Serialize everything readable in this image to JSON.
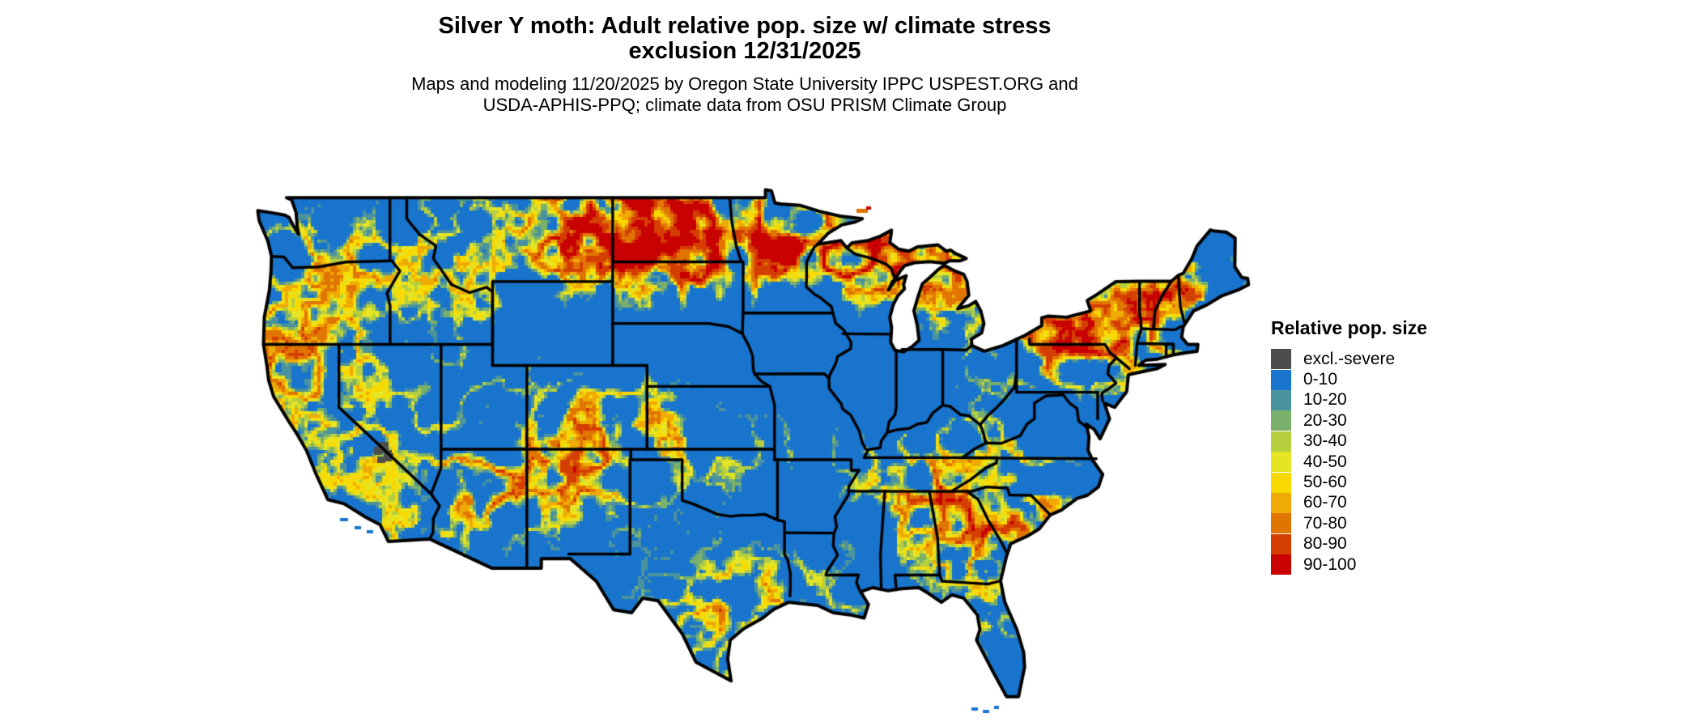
{
  "title": {
    "line1": "Silver Y moth: Adult relative pop. size w/ climate stress",
    "line2": "exclusion 12/31/2025"
  },
  "subtitle": {
    "line1": "Maps and modeling 11/20/2025 by Oregon State University IPPC USPEST.ORG and",
    "line2": "USDA-APHIS-PPQ; climate data from OSU PRISM Climate Group"
  },
  "legend": {
    "title": "Relative pop. size",
    "items": [
      {
        "label": "excl.-severe",
        "color": "#4d4d4d"
      },
      {
        "label": "0-10",
        "color": "#1874CD"
      },
      {
        "label": "10-20",
        "color": "#4B929F"
      },
      {
        "label": "20-30",
        "color": "#7AB06C"
      },
      {
        "label": "30-40",
        "color": "#B6CF3F"
      },
      {
        "label": "40-50",
        "color": "#E6E423"
      },
      {
        "label": "50-60",
        "color": "#F8D902"
      },
      {
        "label": "60-70",
        "color": "#EFAA04"
      },
      {
        "label": "70-80",
        "color": "#E17502"
      },
      {
        "label": "80-90",
        "color": "#D53E02"
      },
      {
        "label": "90-100",
        "color": "#C80101"
      }
    ]
  },
  "map": {
    "border_color": "#000000",
    "background": "#ffffff"
  }
}
